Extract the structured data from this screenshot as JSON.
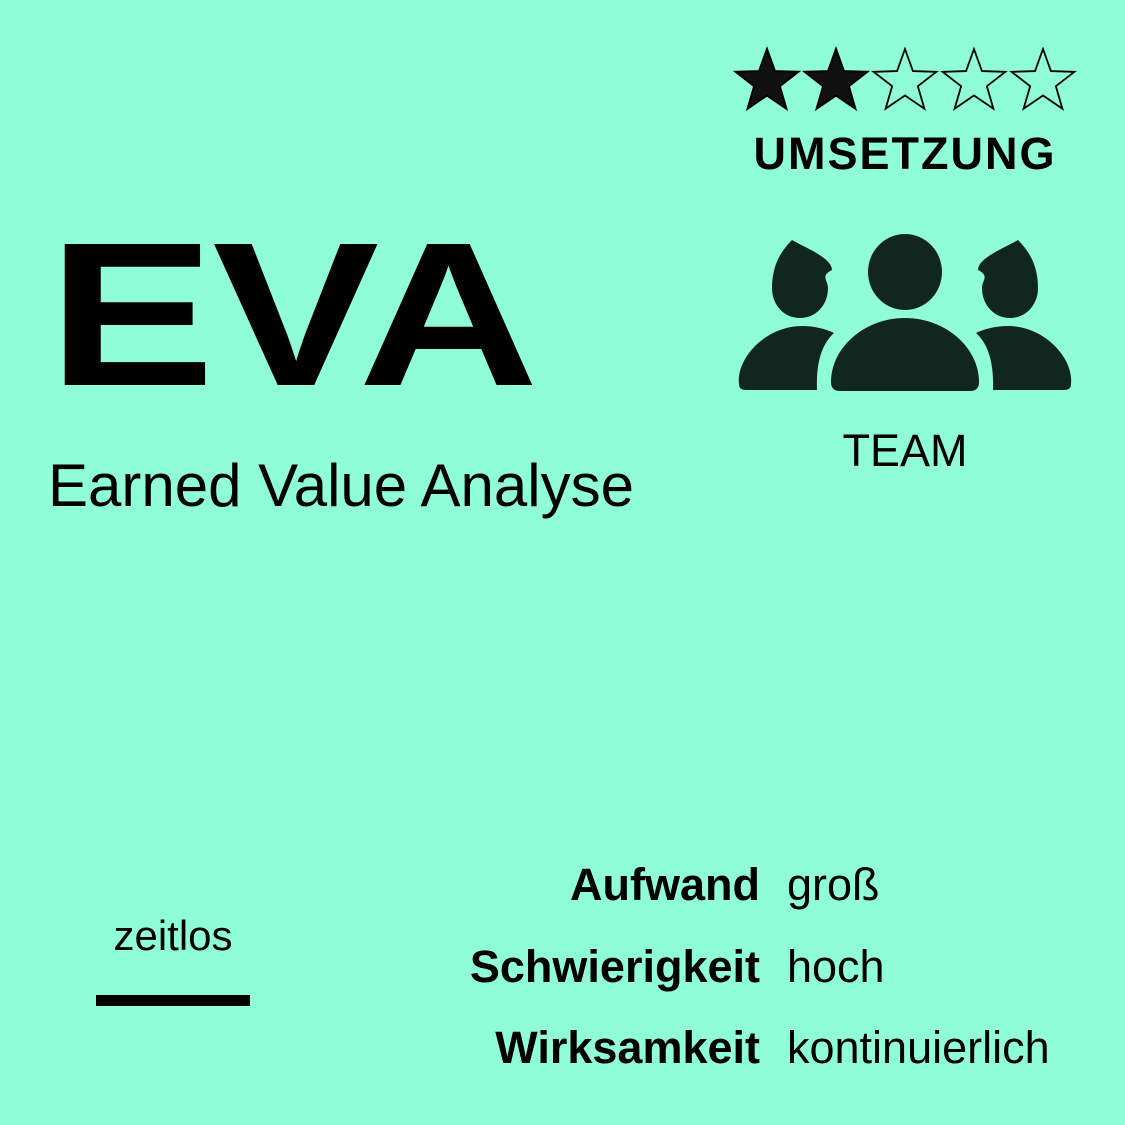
{
  "card": {
    "title": "EVA",
    "subtitle": "Earned Value Analyse",
    "background_color": "#8ffed8",
    "text_color": "#000000",
    "icon_color": "#122620"
  },
  "rating": {
    "filled": 2,
    "total": 5,
    "label": "UMSETZUNG"
  },
  "audience": {
    "icon": "team-icon",
    "label": "TEAM"
  },
  "time_tag": {
    "label": "zeitlos"
  },
  "attributes": [
    {
      "key": "Aufwand",
      "value": "groß"
    },
    {
      "key": "Schwierigkeit",
      "value": "hoch"
    },
    {
      "key": "Wirksamkeit",
      "value": "kontinuierlich"
    }
  ]
}
